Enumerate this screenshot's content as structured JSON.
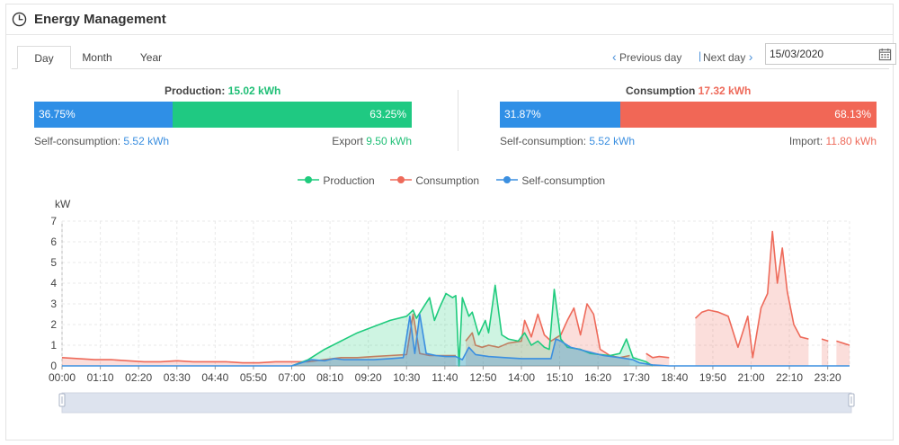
{
  "header": {
    "title": "Energy Management",
    "icon": "clock-icon"
  },
  "tabs": [
    {
      "label": "Day",
      "active": true
    },
    {
      "label": "Month",
      "active": false
    },
    {
      "label": "Year",
      "active": false
    }
  ],
  "date_nav": {
    "previous_label": "Previous day",
    "next_label": "Next day",
    "separator": "|",
    "date_value": "15/03/2020"
  },
  "production": {
    "title_label": "Production:",
    "total": "15.02 kWh",
    "self_pct": "36.75%",
    "self_fraction": 0.3675,
    "export_pct": "63.25%",
    "self_label": "Self-consumption:",
    "self_value": "5.52 kWh",
    "export_label": "Export",
    "export_value": "9.50 kWh"
  },
  "consumption": {
    "title_label": "Consumption",
    "total": "17.32 kWh",
    "self_pct": "31.87%",
    "self_fraction": 0.3187,
    "import_pct": "68.13%",
    "self_label": "Self-consumption:",
    "self_value": "5.52 kWh",
    "import_label": "Import:",
    "import_value": "11.80 kWh"
  },
  "colors": {
    "production": "#1fcb7d",
    "consumption": "#ee6a5a",
    "self": "#3b8fe0",
    "self_bar": "#2f8fe6",
    "production_bar": "#1fc982",
    "consumption_bar": "#f16756",
    "accent": "#4a90d9"
  },
  "chart_data": {
    "type": "area",
    "ylabel": "kW",
    "ylim": [
      0,
      7
    ],
    "yticks": [
      "0",
      "1",
      "2",
      "3",
      "4",
      "5",
      "6",
      "7"
    ],
    "xticks": [
      "00:00",
      "01:10",
      "02:20",
      "03:30",
      "04:40",
      "05:50",
      "07:00",
      "08:10",
      "09:20",
      "10:30",
      "11:40",
      "12:50",
      "14:00",
      "15:10",
      "16:20",
      "17:30",
      "18:40",
      "19:50",
      "21:00",
      "22:10",
      "23:20"
    ],
    "x_unit": "hour",
    "grid": true,
    "legend_position": "top",
    "series": [
      {
        "name": "Production",
        "key": "production",
        "points": [
          [
            7.0,
            0
          ],
          [
            7.5,
            0.3
          ],
          [
            8.0,
            0.8
          ],
          [
            8.5,
            1.2
          ],
          [
            9.0,
            1.6
          ],
          [
            9.5,
            1.9
          ],
          [
            10.0,
            2.2
          ],
          [
            10.5,
            2.4
          ],
          [
            10.7,
            2.7
          ],
          [
            10.8,
            2.3
          ],
          [
            11.0,
            2.8
          ],
          [
            11.2,
            3.3
          ],
          [
            11.35,
            2.2
          ],
          [
            11.5,
            2.8
          ],
          [
            11.7,
            3.5
          ],
          [
            11.9,
            3.3
          ],
          [
            12.0,
            3.4
          ],
          [
            12.1,
            0
          ],
          [
            12.2,
            3.3
          ],
          [
            12.4,
            2.4
          ],
          [
            12.5,
            2.6
          ],
          [
            12.7,
            1.5
          ],
          [
            12.9,
            2.2
          ],
          [
            13.0,
            1.6
          ],
          [
            13.2,
            3.9
          ],
          [
            13.4,
            1.5
          ],
          [
            13.6,
            1.3
          ],
          [
            13.9,
            1.2
          ],
          [
            14.1,
            1.6
          ],
          [
            14.3,
            1.0
          ],
          [
            14.5,
            1.2
          ],
          [
            14.7,
            0.9
          ],
          [
            14.85,
            0.8
          ],
          [
            15.0,
            3.7
          ],
          [
            15.2,
            1.3
          ],
          [
            15.4,
            0.9
          ],
          [
            15.8,
            0.8
          ],
          [
            16.1,
            0.6
          ],
          [
            16.4,
            0.55
          ],
          [
            16.7,
            0.5
          ],
          [
            17.0,
            0.6
          ],
          [
            17.2,
            1.3
          ],
          [
            17.4,
            0.4
          ],
          [
            17.6,
            0.3
          ],
          [
            17.8,
            0.2
          ],
          [
            18.0,
            0
          ]
        ]
      },
      {
        "name": "Consumption",
        "key": "consumption",
        "points": [
          [
            0,
            0.4
          ],
          [
            0.5,
            0.35
          ],
          [
            1.0,
            0.3
          ],
          [
            1.5,
            0.3
          ],
          [
            2.0,
            0.25
          ],
          [
            2.5,
            0.2
          ],
          [
            3.0,
            0.2
          ],
          [
            3.5,
            0.25
          ],
          [
            4.0,
            0.2
          ],
          [
            4.5,
            0.2
          ],
          [
            5.0,
            0.2
          ],
          [
            5.5,
            0.15
          ],
          [
            6.0,
            0.15
          ],
          [
            6.5,
            0.2
          ],
          [
            7.0,
            0.2
          ],
          [
            7.5,
            0.2
          ],
          [
            8.0,
            0.3
          ],
          [
            8.5,
            0.4
          ],
          [
            9.0,
            0.4
          ],
          [
            9.5,
            0.45
          ],
          [
            10.0,
            0.5
          ],
          [
            10.5,
            0.55
          ],
          [
            10.7,
            2.5
          ],
          [
            10.9,
            0.6
          ],
          [
            11.2,
            0.5
          ],
          [
            11.5,
            0.5
          ],
          [
            11.8,
            0.5
          ],
          [
            12.0,
            0.5
          ],
          [
            12.1,
            null
          ],
          [
            12.3,
            1.2
          ],
          [
            12.5,
            1.6
          ],
          [
            12.6,
            1.0
          ],
          [
            12.8,
            0.9
          ],
          [
            13.0,
            1.0
          ],
          [
            13.3,
            0.9
          ],
          [
            13.6,
            1.1
          ],
          [
            14.0,
            1.2
          ],
          [
            14.1,
            2.2
          ],
          [
            14.3,
            1.4
          ],
          [
            14.5,
            2.5
          ],
          [
            14.7,
            1.5
          ],
          [
            14.9,
            1.2
          ],
          [
            15.2,
            1.5
          ],
          [
            15.4,
            2.2
          ],
          [
            15.6,
            2.8
          ],
          [
            15.8,
            1.5
          ],
          [
            16.0,
            3.0
          ],
          [
            16.2,
            2.5
          ],
          [
            16.4,
            0.8
          ],
          [
            16.7,
            0.5
          ],
          [
            17.0,
            0.4
          ],
          [
            17.3,
            0.5
          ],
          [
            17.55,
            null
          ],
          [
            17.8,
            0.6
          ],
          [
            18.0,
            0.4
          ],
          [
            18.2,
            0.45
          ],
          [
            18.5,
            0.4
          ],
          [
            18.7,
            null
          ],
          [
            19.3,
            2.3
          ],
          [
            19.5,
            2.6
          ],
          [
            19.7,
            2.7
          ],
          [
            20.0,
            2.6
          ],
          [
            20.3,
            2.4
          ],
          [
            20.6,
            0.9
          ],
          [
            20.9,
            2.4
          ],
          [
            21.05,
            0.4
          ],
          [
            21.3,
            2.8
          ],
          [
            21.5,
            3.5
          ],
          [
            21.65,
            6.5
          ],
          [
            21.8,
            4.0
          ],
          [
            21.95,
            5.7
          ],
          [
            22.1,
            3.6
          ],
          [
            22.3,
            2.0
          ],
          [
            22.5,
            1.4
          ],
          [
            22.75,
            1.3
          ],
          [
            23.0,
            null
          ],
          [
            23.15,
            1.3
          ],
          [
            23.35,
            1.2
          ],
          [
            23.5,
            null
          ],
          [
            23.6,
            1.2
          ],
          [
            23.8,
            1.1
          ],
          [
            24.0,
            1.0
          ]
        ]
      },
      {
        "name": "Self-consumption",
        "key": "self",
        "points": [
          [
            0,
            0
          ],
          [
            7.0,
            0
          ],
          [
            7.2,
            0.1
          ],
          [
            7.6,
            0.3
          ],
          [
            8.0,
            0.25
          ],
          [
            8.3,
            0.35
          ],
          [
            8.6,
            0.3
          ],
          [
            9.0,
            0.3
          ],
          [
            9.5,
            0.3
          ],
          [
            10.0,
            0.35
          ],
          [
            10.4,
            0.4
          ],
          [
            10.6,
            2.4
          ],
          [
            10.75,
            0.6
          ],
          [
            10.9,
            2.5
          ],
          [
            11.1,
            0.6
          ],
          [
            11.4,
            0.5
          ],
          [
            11.7,
            0.45
          ],
          [
            12.0,
            0.45
          ],
          [
            12.2,
            0.3
          ],
          [
            12.4,
            0.9
          ],
          [
            12.6,
            0.55
          ],
          [
            13.0,
            0.45
          ],
          [
            13.5,
            0.4
          ],
          [
            14.0,
            0.35
          ],
          [
            14.5,
            0.35
          ],
          [
            14.9,
            0.35
          ],
          [
            15.05,
            1.3
          ],
          [
            15.2,
            1.2
          ],
          [
            15.5,
            0.9
          ],
          [
            16.0,
            0.7
          ],
          [
            16.5,
            0.5
          ],
          [
            17.0,
            0.4
          ],
          [
            17.4,
            0.3
          ],
          [
            17.6,
            0.15
          ],
          [
            18.0,
            0.05
          ],
          [
            18.5,
            0.0
          ],
          [
            24.0,
            0
          ]
        ]
      }
    ]
  }
}
